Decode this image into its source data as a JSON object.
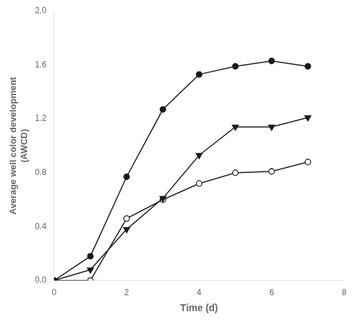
{
  "chart_data": {
    "type": "line",
    "xlabel": "Time (d)",
    "ylabel": [
      "Average well color development",
      "(AWCD)"
    ],
    "x": [
      0,
      1,
      2,
      3,
      4,
      5,
      6,
      7
    ],
    "series": [
      {
        "color": "#1a1a1a",
        "marker": "circle",
        "values": [
          0.0,
          0.18,
          0.77,
          1.27,
          1.53,
          1.59,
          1.63,
          1.59
        ]
      },
      {
        "color": "#1a1a1a",
        "marker": "triangle_down",
        "values": [
          0.0,
          0.08,
          0.38,
          0.61,
          0.93,
          1.14,
          1.14,
          1.21
        ]
      },
      {
        "color": "#1a1a1a",
        "marker": "open_circle",
        "values": [
          0.0,
          0.0,
          0.46,
          0.6,
          0.72,
          0.8,
          0.81,
          0.88
        ]
      }
    ],
    "xlim": [
      0,
      8
    ],
    "xticks": [
      0,
      2,
      4,
      6,
      8
    ],
    "ylim": [
      0.0,
      2.0
    ],
    "yticks": [
      {
        "value": 0.0,
        "label": "0.0"
      },
      0.4,
      0.8,
      1.2,
      1.6,
      {
        "value": 2.0,
        "label": "2.0"
      }
    ],
    "grid": false
  }
}
